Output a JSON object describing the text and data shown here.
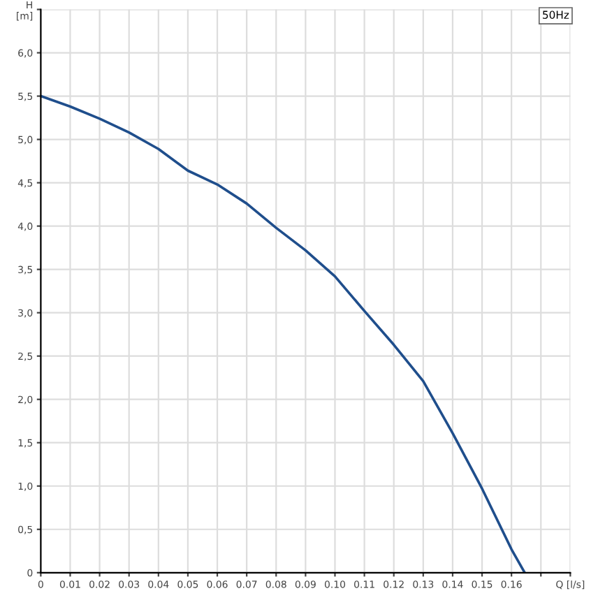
{
  "chart_data": {
    "type": "line",
    "annotations": [
      "50Hz"
    ],
    "x": [
      0,
      0.01,
      0.02,
      0.03,
      0.04,
      0.05,
      0.06,
      0.07,
      0.08,
      0.09,
      0.1,
      0.11,
      0.12,
      0.13,
      0.14,
      0.15,
      0.16,
      0.1645
    ],
    "series": [
      {
        "color": "#1f4e8c",
        "values": [
          5.5,
          5.38,
          5.24,
          5.08,
          4.89,
          4.64,
          4.48,
          4.26,
          3.98,
          3.72,
          3.42,
          3.02,
          2.63,
          2.21,
          1.61,
          0.97,
          0.27,
          0
        ]
      }
    ],
    "xlim": [
      0,
      0.18
    ],
    "xticks": [
      0,
      {
        "value": 0.01,
        "label": "0.01"
      },
      {
        "value": 0.02,
        "label": "0.02"
      },
      {
        "value": 0.03,
        "label": "0.03"
      },
      {
        "value": 0.04,
        "label": "0.04"
      },
      {
        "value": 0.05,
        "label": "0.05"
      },
      {
        "value": 0.06,
        "label": "0.06"
      },
      {
        "value": 0.07,
        "label": "0.07"
      },
      {
        "value": 0.08,
        "label": "0.08"
      },
      {
        "value": 0.09,
        "label": "0.09"
      },
      {
        "value": 0.1,
        "label": "0.10"
      },
      {
        "value": 0.11,
        "label": "0.11"
      },
      {
        "value": 0.12,
        "label": "0.12"
      },
      {
        "value": 0.13,
        "label": "0.13"
      },
      {
        "value": 0.14,
        "label": "0.14"
      },
      {
        "value": 0.15,
        "label": "0.15"
      },
      {
        "value": 0.16,
        "label": "0.16"
      },
      {
        "value": 0.17,
        "label": null
      },
      {
        "value": 0.18,
        "label": "Q [l/s]"
      }
    ],
    "ylim": [
      0,
      6.5
    ],
    "yticks": [
      0,
      {
        "value": 0.5,
        "label": "0,5"
      },
      {
        "value": 1,
        "label": "1,0"
      },
      {
        "value": 1.5,
        "label": "1,5"
      },
      {
        "value": 2,
        "label": "2,0"
      },
      {
        "value": 2.5,
        "label": "2,5"
      },
      {
        "value": 3,
        "label": "3,0"
      },
      {
        "value": 3.5,
        "label": "3,5"
      },
      {
        "value": 4,
        "label": "4,0"
      },
      {
        "value": 4.5,
        "label": "4,5"
      },
      {
        "value": 5,
        "label": "5,0"
      },
      {
        "value": 5.5,
        "label": "5,5"
      },
      {
        "value": 6,
        "label": "6,0"
      },
      {
        "value": 6.5,
        "label": "H\n[m]"
      }
    ],
    "grid": true,
    "marker": "none",
    "line_style": "solid",
    "legend": false
  }
}
